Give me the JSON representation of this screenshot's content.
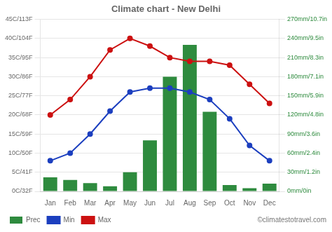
{
  "chart_data": {
    "type": "bar",
    "title": "Climate chart - New Delhi",
    "categories": [
      "Jan",
      "Feb",
      "Mar",
      "Apr",
      "May",
      "Jun",
      "Jul",
      "Aug",
      "Sep",
      "Oct",
      "Nov",
      "Dec"
    ],
    "series": [
      {
        "name": "Prec",
        "type": "bar",
        "axis": "y2",
        "color": "#2e8b3e",
        "values": [
          22,
          18,
          13,
          8,
          30,
          80,
          180,
          230,
          125,
          10,
          5,
          12
        ]
      },
      {
        "name": "Min",
        "type": "line",
        "color": "#1c3fbf",
        "marker": "circle",
        "line_style": "solid",
        "values": [
          8,
          10,
          15,
          21,
          26,
          27,
          27,
          26,
          24,
          19,
          12,
          8
        ]
      },
      {
        "name": "Max",
        "type": "line",
        "color": "#cc1111",
        "marker": "circle",
        "line_style": "solid",
        "values": [
          20,
          24,
          30,
          37,
          40,
          38,
          35,
          34,
          34,
          33,
          28,
          23
        ]
      }
    ],
    "ylim": [
      0,
      45
    ],
    "yticks": [
      {
        "value": 0,
        "label": "0C/32F"
      },
      {
        "value": 5,
        "label": "5C/41F"
      },
      {
        "value": 10,
        "label": "10C/50F"
      },
      {
        "value": 15,
        "label": "15C/59F"
      },
      {
        "value": 20,
        "label": "20C/68F"
      },
      {
        "value": 25,
        "label": "25C/77F"
      },
      {
        "value": 30,
        "label": "30C/86F"
      },
      {
        "value": 35,
        "label": "35C/95F"
      },
      {
        "value": 40,
        "label": "40C/104F"
      },
      {
        "value": 45,
        "label": "45C/113F"
      }
    ],
    "y2lim": [
      0,
      270
    ],
    "y2ticks": [
      {
        "value": 0,
        "label": "0mm/0in"
      },
      {
        "value": 30,
        "label": "30mm/1.2in"
      },
      {
        "value": 60,
        "label": "60mm/2.4in"
      },
      {
        "value": 90,
        "label": "90mm/3.6in"
      },
      {
        "value": 120,
        "label": "120mm/4.8in"
      },
      {
        "value": 150,
        "label": "150mm/5.9in"
      },
      {
        "value": 180,
        "label": "180mm/7.1in"
      },
      {
        "value": 210,
        "label": "210mm/8.3in"
      },
      {
        "value": 240,
        "label": "240mm/9.5in"
      },
      {
        "value": 270,
        "label": "270mm/10.7in"
      }
    ],
    "grid": true,
    "legend": "bottom",
    "annotations": [
      "©climatestotravel.com"
    ]
  }
}
